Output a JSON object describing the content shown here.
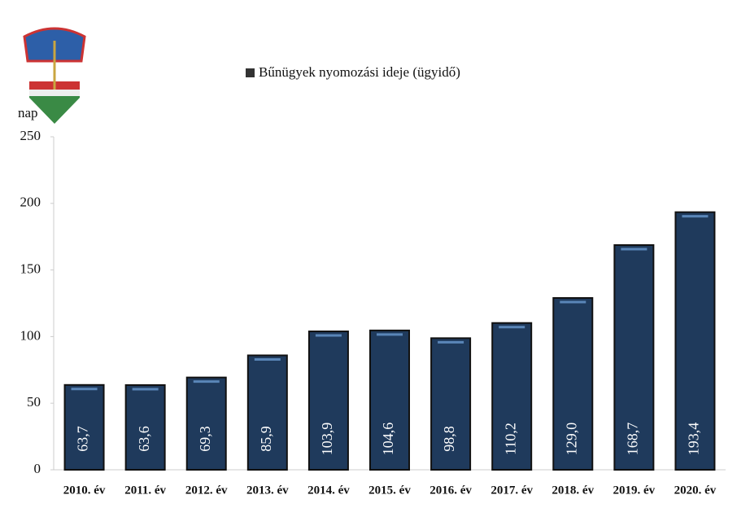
{
  "chart_data": {
    "type": "bar",
    "legend_label": "Bűnügyek nyomozási ideje (ügyidő)",
    "y_label": "nap",
    "categories": [
      "2010. év",
      "2011. év",
      "2012. év",
      "2013. év",
      "2014. év",
      "2015. év",
      "2016. év",
      "2017. év",
      "2018. év",
      "2019. év",
      "2020. év"
    ],
    "values": [
      63.7,
      63.6,
      69.3,
      85.9,
      103.9,
      104.6,
      98.8,
      110.2,
      129.0,
      168.7,
      193.4
    ],
    "value_labels": [
      "63,7",
      "63,6",
      "69,3",
      "85,9",
      "103,9",
      "104,6",
      "98,8",
      "110,2",
      "129,0",
      "168,7",
      "193,4"
    ],
    "color": "#1f3a5c",
    "ylim": [
      0,
      250
    ],
    "yticks": [
      0,
      50,
      100,
      150,
      200,
      250
    ],
    "grid": false
  }
}
